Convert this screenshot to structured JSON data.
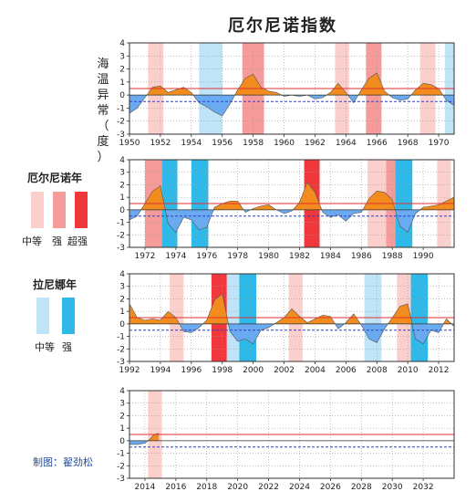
{
  "title": "厄尔尼诺指数",
  "ylabel": "海温异常（度）",
  "credit": "制图：翟劲松",
  "legend": {
    "elnino": {
      "title": "厄尔尼诺年",
      "labels": [
        "中等",
        "强",
        "超强"
      ],
      "colors": [
        "#fbd0cc",
        "#f59c9a",
        "#f0383c"
      ]
    },
    "lanina": {
      "title": "拉尼娜年",
      "labels": [
        "中等",
        "强"
      ],
      "colors": [
        "#bfe4f7",
        "#2fb9e8"
      ]
    }
  },
  "colors": {
    "positive": "#f28c1e",
    "negative": "#6aaaf0",
    "upper_line": "#e23030",
    "lower_line": "#3040c8"
  },
  "chart_data": [
    {
      "type": "area",
      "xlim": [
        1950,
        1971
      ],
      "ylim": [
        -3,
        4
      ],
      "threshold": [
        0.5,
        -0.5
      ],
      "xticks": [
        1950,
        1952,
        1954,
        1956,
        1958,
        1960,
        1962,
        1964,
        1966,
        1968,
        1970
      ],
      "yticks": [
        -3,
        -2,
        -1,
        0,
        1,
        2,
        3,
        4
      ],
      "bands": [
        {
          "start": 1951.2,
          "end": 1952.2,
          "kind": "elnino-moderate"
        },
        {
          "start": 1954.5,
          "end": 1956.0,
          "kind": "lanina-moderate"
        },
        {
          "start": 1957.3,
          "end": 1958.7,
          "kind": "elnino-strong"
        },
        {
          "start": 1963.3,
          "end": 1964.2,
          "kind": "elnino-moderate"
        },
        {
          "start": 1965.3,
          "end": 1966.3,
          "kind": "elnino-strong"
        },
        {
          "start": 1968.8,
          "end": 1969.8,
          "kind": "elnino-moderate"
        },
        {
          "start": 1970.4,
          "end": 1971.0,
          "kind": "lanina-moderate"
        }
      ],
      "x": [
        1950,
        1950.5,
        1951,
        1951.5,
        1952,
        1952.5,
        1953,
        1953.5,
        1954,
        1954.5,
        1955,
        1955.5,
        1956,
        1956.5,
        1957,
        1957.5,
        1958,
        1958.5,
        1959,
        1959.5,
        1960,
        1960.5,
        1961,
        1961.5,
        1962,
        1962.5,
        1963,
        1963.5,
        1964,
        1964.5,
        1965,
        1965.5,
        1966,
        1966.5,
        1967,
        1967.5,
        1968,
        1968.5,
        1969,
        1969.5,
        1970,
        1970.5,
        1971
      ],
      "y": [
        -1.4,
        -1.0,
        -0.2,
        0.6,
        0.7,
        0.2,
        0.4,
        0.6,
        0.2,
        -0.6,
        -0.9,
        -1.3,
        -1.6,
        -0.7,
        0.4,
        1.3,
        1.6,
        0.6,
        0.3,
        0.2,
        -0.1,
        0.0,
        -0.1,
        0.0,
        -0.3,
        -0.2,
        0.2,
        0.9,
        0.2,
        -0.6,
        0.4,
        1.3,
        1.7,
        0.3,
        -0.2,
        -0.4,
        -0.3,
        0.4,
        0.9,
        0.8,
        0.5,
        -0.4,
        -0.8
      ]
    },
    {
      "type": "area",
      "xlim": [
        1971,
        1992
      ],
      "ylim": [
        -3,
        4
      ],
      "threshold": [
        0.5,
        -0.5
      ],
      "xticks": [
        1972,
        1974,
        1976,
        1978,
        1980,
        1982,
        1984,
        1986,
        1988,
        1990
      ],
      "yticks": [
        -3,
        -2,
        -1,
        0,
        1,
        2,
        3,
        4
      ],
      "bands": [
        {
          "start": 1972.0,
          "end": 1973.1,
          "kind": "elnino-strong"
        },
        {
          "start": 1973.1,
          "end": 1974.1,
          "kind": "lanina-strong"
        },
        {
          "start": 1975.0,
          "end": 1976.1,
          "kind": "lanina-strong"
        },
        {
          "start": 1982.3,
          "end": 1983.3,
          "kind": "elnino-super"
        },
        {
          "start": 1986.4,
          "end": 1987.6,
          "kind": "elnino-moderate"
        },
        {
          "start": 1987.6,
          "end": 1988.2,
          "kind": "elnino-strong"
        },
        {
          "start": 1988.2,
          "end": 1989.3,
          "kind": "lanina-strong"
        },
        {
          "start": 1990.9,
          "end": 1991.8,
          "kind": "elnino-moderate"
        }
      ],
      "x": [
        1971,
        1971.5,
        1972,
        1972.5,
        1973,
        1973.5,
        1974,
        1974.5,
        1975,
        1975.5,
        1976,
        1976.5,
        1977,
        1977.5,
        1978,
        1978.5,
        1979,
        1979.5,
        1980,
        1980.5,
        1981,
        1981.5,
        1982,
        1982.5,
        1983,
        1983.5,
        1984,
        1984.5,
        1985,
        1985.5,
        1986,
        1986.5,
        1987,
        1987.5,
        1988,
        1988.5,
        1989,
        1989.5,
        1990,
        1990.5,
        1991,
        1991.5,
        1992
      ],
      "y": [
        -0.8,
        -0.5,
        0.5,
        1.5,
        1.9,
        -1.1,
        -1.8,
        -0.6,
        -0.8,
        -1.6,
        -1.4,
        0.2,
        0.5,
        0.7,
        0.7,
        -0.2,
        0.1,
        0.3,
        0.4,
        0.0,
        -0.3,
        -0.1,
        0.6,
        2.2,
        1.4,
        -0.2,
        -0.6,
        -0.4,
        -0.9,
        -0.3,
        -0.2,
        0.9,
        1.5,
        1.4,
        0.8,
        -1.3,
        -1.8,
        -0.3,
        0.2,
        0.3,
        0.4,
        0.7,
        1.0
      ]
    },
    {
      "type": "area",
      "xlim": [
        1992,
        2013
      ],
      "ylim": [
        -3,
        4
      ],
      "threshold": [
        0.5,
        -0.5
      ],
      "xticks": [
        1992,
        1994,
        1996,
        1998,
        2000,
        2002,
        2004,
        2006,
        2008,
        2010,
        2012
      ],
      "yticks": [
        -3,
        -2,
        -1,
        0,
        1,
        2,
        3,
        4
      ],
      "bands": [
        {
          "start": 1994.6,
          "end": 1995.5,
          "kind": "elnino-moderate"
        },
        {
          "start": 1997.3,
          "end": 1998.3,
          "kind": "elnino-super"
        },
        {
          "start": 1998.3,
          "end": 1999.1,
          "kind": "lanina-moderate"
        },
        {
          "start": 1999.1,
          "end": 2000.2,
          "kind": "lanina-strong"
        },
        {
          "start": 2002.3,
          "end": 2003.2,
          "kind": "elnino-moderate"
        },
        {
          "start": 2007.2,
          "end": 2008.3,
          "kind": "lanina-moderate"
        },
        {
          "start": 2009.3,
          "end": 2010.2,
          "kind": "elnino-moderate"
        },
        {
          "start": 2010.2,
          "end": 2011.3,
          "kind": "lanina-strong"
        }
      ],
      "x": [
        1992,
        1992.5,
        1993,
        1993.5,
        1994,
        1994.5,
        1995,
        1995.5,
        1996,
        1996.5,
        1997,
        1997.5,
        1998,
        1998.5,
        1999,
        1999.5,
        2000,
        2000.5,
        2001,
        2001.5,
        2002,
        2002.5,
        2003,
        2003.5,
        2004,
        2004.5,
        2005,
        2005.5,
        2006,
        2006.5,
        2007,
        2007.5,
        2008,
        2008.5,
        2009,
        2009.5,
        2010,
        2010.5,
        2011,
        2011.5,
        2012,
        2012.5,
        2013
      ],
      "y": [
        1.6,
        0.5,
        0.3,
        0.4,
        0.3,
        1.0,
        0.5,
        -0.6,
        -0.7,
        -0.3,
        0.3,
        1.9,
        2.4,
        -0.6,
        -1.4,
        -1.2,
        -1.6,
        -0.5,
        -0.3,
        0.1,
        0.5,
        1.2,
        0.6,
        0.1,
        0.4,
        0.7,
        0.6,
        -0.4,
        0.1,
        0.8,
        -0.1,
        -1.2,
        -1.5,
        -0.4,
        0.5,
        1.4,
        1.6,
        -1.2,
        -1.6,
        -0.5,
        -0.7,
        0.4,
        -0.2
      ]
    },
    {
      "type": "area",
      "xlim": [
        2013,
        2034
      ],
      "ylim": [
        -3,
        4
      ],
      "threshold": [
        0.5,
        -0.5
      ],
      "xticks": [
        2014,
        2016,
        2018,
        2020,
        2022,
        2024,
        2026,
        2028,
        2030,
        2032
      ],
      "yticks": [
        -3,
        -2,
        -1,
        0,
        1,
        2,
        3,
        4
      ],
      "bands": [
        {
          "start": 2014.2,
          "end": 2015.1,
          "kind": "elnino-moderate"
        }
      ],
      "x": [
        2013,
        2013.5,
        2014,
        2014.3,
        2014.6,
        2014.9
      ],
      "y": [
        -0.3,
        -0.3,
        -0.2,
        0.1,
        0.5,
        0.6
      ]
    }
  ]
}
